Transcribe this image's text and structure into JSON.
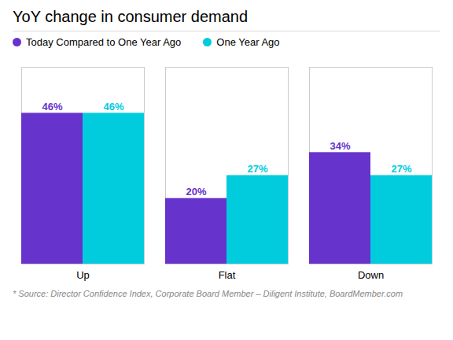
{
  "chart_data": {
    "type": "bar",
    "title": "YoY change in consumer demand",
    "categories": [
      "Up",
      "Flat",
      "Down"
    ],
    "series": [
      {
        "name": "Today Compared to One Year Ago",
        "color": "#6633cc",
        "values": [
          46,
          20,
          34
        ],
        "value_labels": [
          "46%",
          "20%",
          "34%"
        ]
      },
      {
        "name": "One Year Ago",
        "color": "#00ccdd",
        "values": [
          46,
          27,
          27
        ],
        "value_labels": [
          "46%",
          "27%",
          "27%"
        ]
      }
    ],
    "ylim": [
      0,
      60
    ],
    "yticks": [],
    "grid": false,
    "legend": "top",
    "data_labels": true,
    "tick_labels": "x",
    "caption": "* Source: Director Confidence Index, Corporate Board Member – Diligent Institute, BoardMember.com"
  }
}
